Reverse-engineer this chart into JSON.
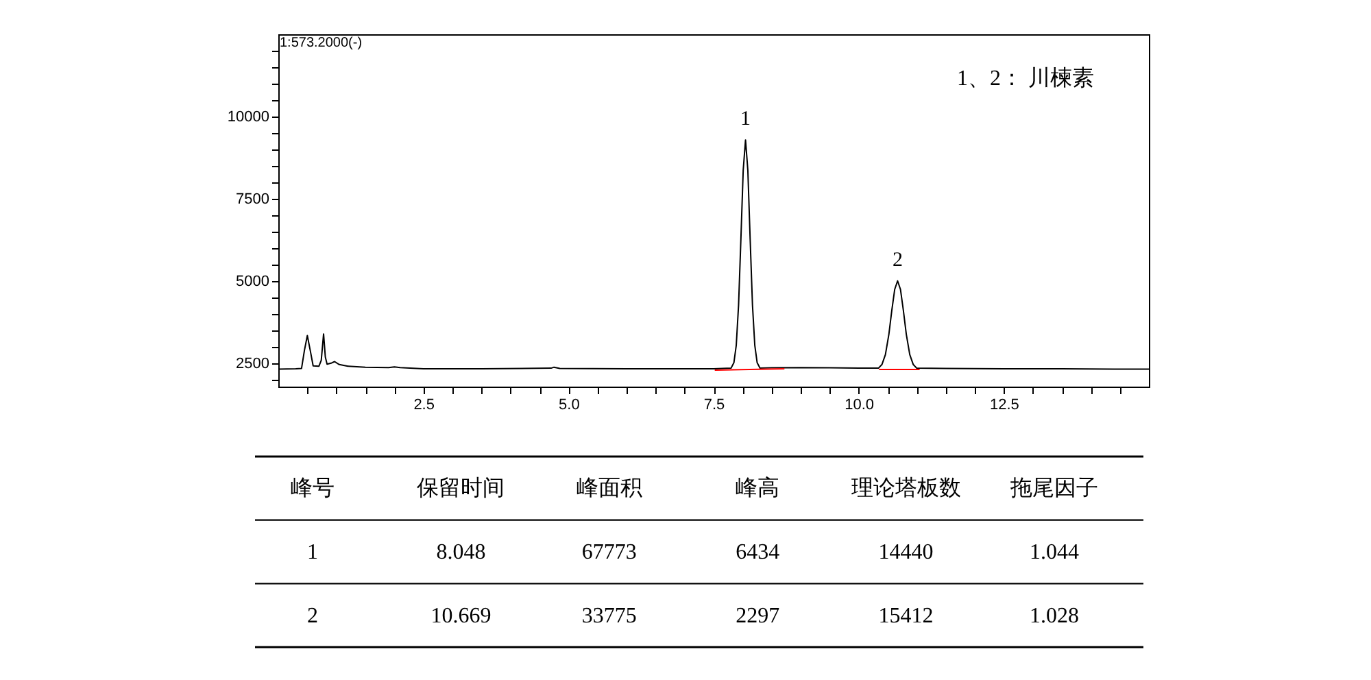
{
  "chart_data": [
    {
      "type": "line",
      "annotations": [
        "1:573.2000(-)",
        "1、2： 川楝素",
        {
          "text": "1",
          "x": 8.05,
          "y": 9290
        },
        {
          "text": "2",
          "x": 10.67,
          "y": 5010
        }
      ],
      "series": [
        {
          "color": "#000000",
          "x": [
            0,
            0.3,
            0.4,
            0.45,
            0.5,
            0.55,
            0.6,
            0.7,
            0.74,
            0.78,
            0.81,
            0.84,
            0.92,
            0.97,
            1.05,
            1.2,
            1.5,
            1.9,
            2.0,
            2.1,
            2.5,
            3.5,
            4.7,
            4.75,
            4.85,
            6.0,
            7.0,
            7.5,
            7.8,
            7.85,
            7.89,
            7.93,
            7.97,
            8.01,
            8.05,
            8.09,
            8.13,
            8.17,
            8.21,
            8.25,
            8.3,
            8.5,
            9.0,
            9.5,
            10.0,
            10.34,
            10.4,
            10.46,
            10.52,
            10.57,
            10.62,
            10.67,
            10.72,
            10.77,
            10.82,
            10.88,
            10.94,
            11.0,
            11.5,
            12.5,
            13.5,
            14.4,
            15.0
          ],
          "values": [
            2330,
            2340,
            2350,
            2900,
            3350,
            2900,
            2430,
            2420,
            2600,
            3400,
            2700,
            2480,
            2520,
            2560,
            2470,
            2420,
            2390,
            2380,
            2400,
            2380,
            2340,
            2340,
            2360,
            2390,
            2350,
            2340,
            2340,
            2340,
            2360,
            2530,
            3050,
            4270,
            6270,
            8370,
            9290,
            8370,
            6270,
            4270,
            3050,
            2530,
            2360,
            2370,
            2380,
            2370,
            2360,
            2360,
            2470,
            2770,
            3390,
            4110,
            4750,
            5010,
            4750,
            4110,
            3390,
            2770,
            2470,
            2360,
            2350,
            2340,
            2340,
            2330,
            2330
          ]
        },
        {
          "type": "line",
          "color": "#ff0000",
          "x": [
            7.52,
            8.72
          ],
          "values": [
            2300,
            2340
          ]
        },
        {
          "type": "line",
          "color": "#ff0000",
          "x": [
            10.35,
            11.05
          ],
          "values": [
            2320,
            2320
          ]
        }
      ],
      "xlim": [
        0,
        15
      ],
      "xticks": [
        {
          "value": 0.5,
          "label": null
        },
        {
          "value": 1.0,
          "label": null
        },
        {
          "value": 1.5,
          "label": null
        },
        {
          "value": 2.0,
          "label": null
        },
        2.5,
        {
          "value": 3.0,
          "label": null
        },
        {
          "value": 3.5,
          "label": null
        },
        {
          "value": 4.0,
          "label": null
        },
        {
          "value": 4.5,
          "label": null
        },
        {
          "value": 5,
          "label": "5.0"
        },
        {
          "value": 5.5,
          "label": null
        },
        {
          "value": 6.0,
          "label": null
        },
        {
          "value": 6.5,
          "label": null
        },
        {
          "value": 7.0,
          "label": null
        },
        7.5,
        {
          "value": 8.0,
          "label": null
        },
        {
          "value": 8.5,
          "label": null
        },
        {
          "value": 9.0,
          "label": null
        },
        {
          "value": 9.5,
          "label": null
        },
        {
          "value": 10,
          "label": "10.0"
        },
        {
          "value": 10.5,
          "label": null
        },
        {
          "value": 11.0,
          "label": null
        },
        {
          "value": 11.5,
          "label": null
        },
        {
          "value": 12.0,
          "label": null
        },
        12.5,
        {
          "value": 13.0,
          "label": null
        },
        {
          "value": 13.5,
          "label": null
        },
        {
          "value": 14.0,
          "label": null
        },
        {
          "value": 14.5,
          "label": null
        }
      ],
      "ylim": [
        1800,
        12500
      ],
      "yticks": [
        {
          "value": 2000,
          "label": null
        },
        2500,
        {
          "value": 3000,
          "label": null
        },
        {
          "value": 3500,
          "label": null
        },
        {
          "value": 4000,
          "label": null
        },
        {
          "value": 4500,
          "label": null
        },
        5000,
        {
          "value": 5500,
          "label": null
        },
        {
          "value": 6000,
          "label": null
        },
        {
          "value": 6500,
          "label": null
        },
        {
          "value": 7000,
          "label": null
        },
        7500,
        {
          "value": 8000,
          "label": null
        },
        {
          "value": 8500,
          "label": null
        },
        {
          "value": 9000,
          "label": null
        },
        {
          "value": 9500,
          "label": null
        },
        10000,
        {
          "value": 10500,
          "label": null
        },
        {
          "value": 11000,
          "label": null
        },
        {
          "value": 11500,
          "label": null
        },
        {
          "value": 12000,
          "label": null
        }
      ],
      "grid": false
    },
    {
      "type": "other",
      "ylabel": "峰号",
      "categories": [
        "保留时间",
        "峰面积",
        "峰高",
        "理论塔板数",
        "拖尾因子"
      ],
      "series": [
        {
          "name": "1",
          "values": [
            8.048,
            67773,
            6434,
            14440,
            1.044
          ]
        },
        {
          "name": "2",
          "values": [
            10.669,
            33775,
            2297,
            15412,
            1.028
          ]
        }
      ],
      "data_labels": true
    }
  ]
}
